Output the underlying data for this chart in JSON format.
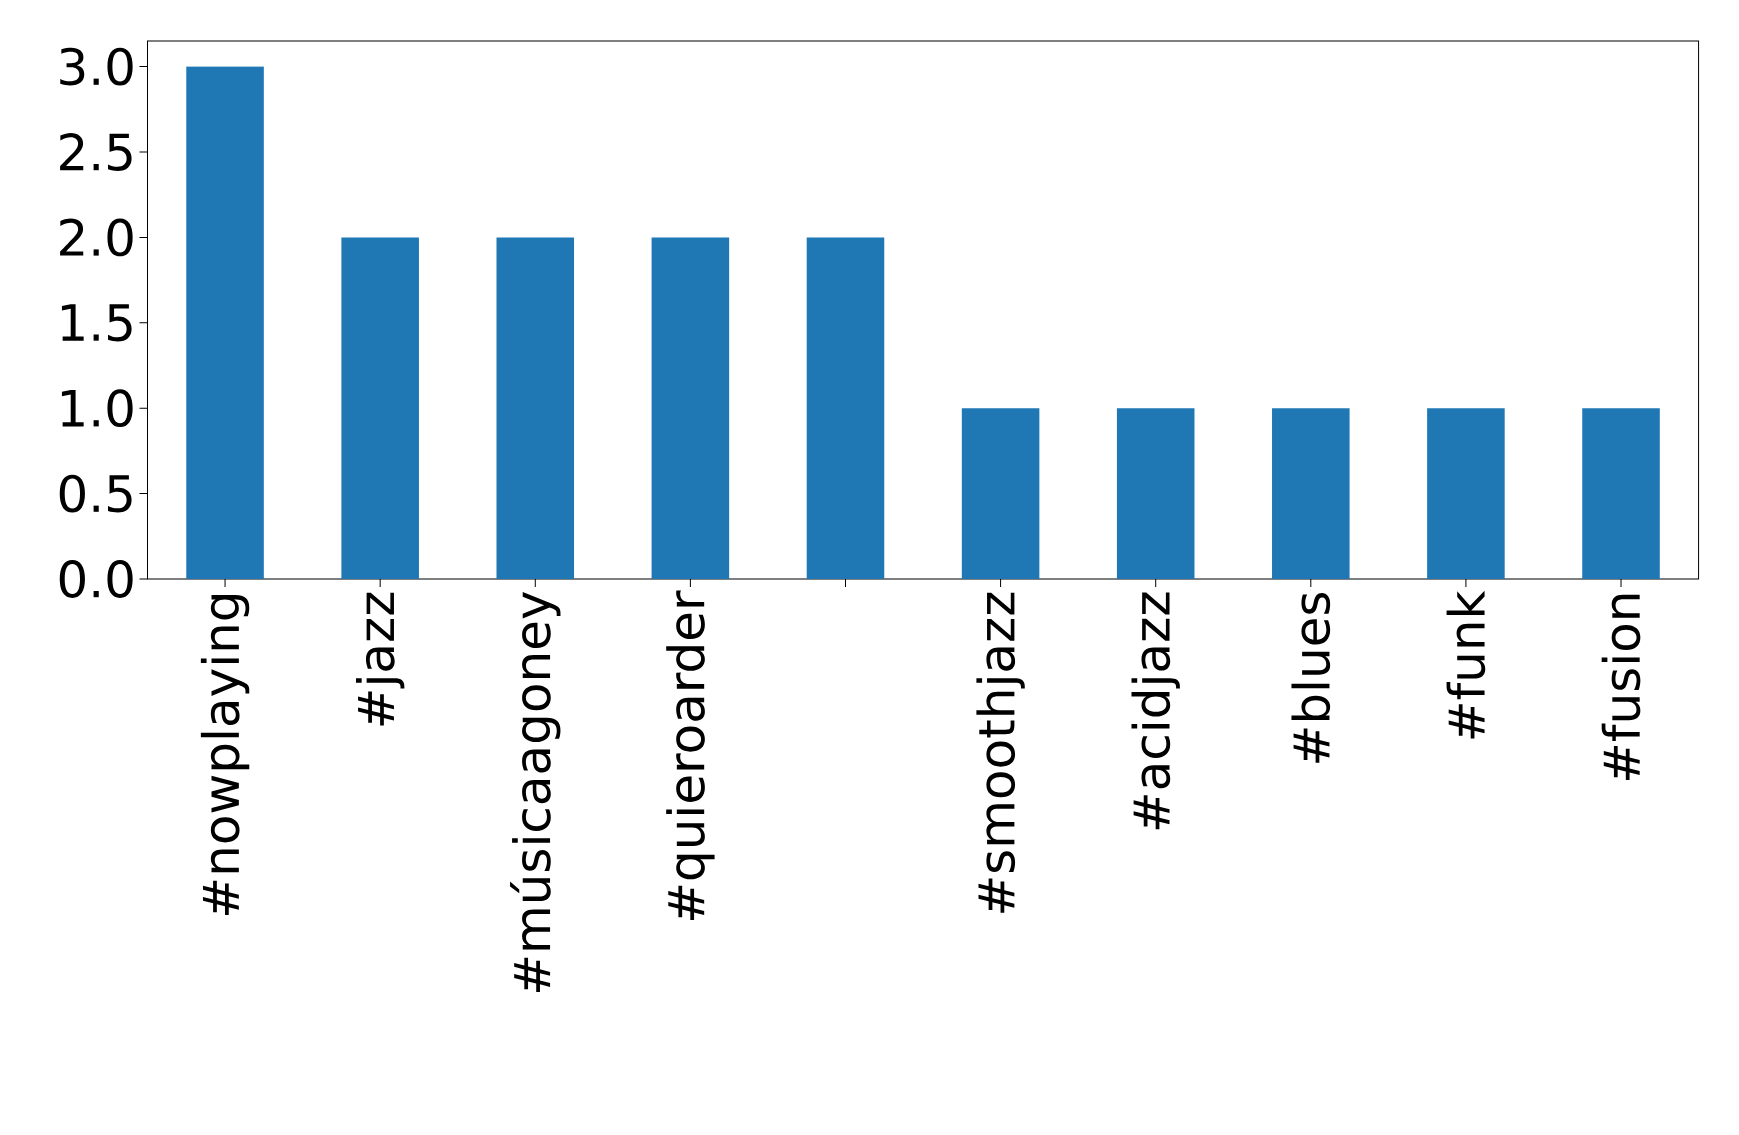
{
  "chart_data": {
    "type": "bar",
    "categories": [
      "#nowplaying",
      "#jazz",
      "#músicaagoney",
      "#quieroarder",
      null,
      "#smoothjazz",
      "#acidjazz",
      "#blues",
      "#funk",
      "#fusion"
    ],
    "values": [
      3,
      2,
      2,
      2,
      2,
      1,
      1,
      1,
      1,
      1
    ],
    "color": "#1f77b4",
    "ylim": [
      0,
      3.15
    ],
    "yticks": [
      {
        "value": 0,
        "label": "0.0"
      },
      {
        "value": 0.5,
        "label": "0.5"
      },
      {
        "value": 1,
        "label": "1.0"
      },
      {
        "value": 1.5,
        "label": "1.5"
      },
      {
        "value": 2,
        "label": "2.0"
      },
      {
        "value": 2.5,
        "label": "2.5"
      },
      {
        "value": 3,
        "label": "3.0"
      }
    ]
  }
}
